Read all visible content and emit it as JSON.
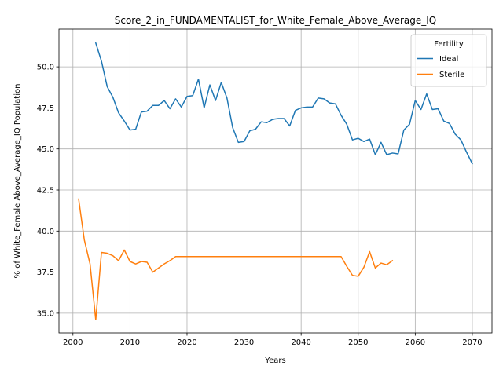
{
  "chart_data": {
    "type": "line",
    "title": "Score_2_in_FUNDAMENTALIST_for_White_Female_Above_Average_IQ",
    "xlabel": "Years",
    "ylabel": "% of White_Female Above_Average_IQ Population",
    "xlim": [
      1997.55,
      2073.45
    ],
    "ylim": [
      33.8,
      52.3
    ],
    "xticks": [
      2000,
      2010,
      2020,
      2030,
      2040,
      2050,
      2060,
      2070
    ],
    "yticks": [
      35.0,
      37.5,
      40.0,
      42.5,
      45.0,
      47.5,
      50.0
    ],
    "grid": true,
    "legend": {
      "title": "Fertility",
      "position": "top-right"
    },
    "series": [
      {
        "name": "Ideal",
        "color": "#1f77b4",
        "x": [
          2004,
          2005,
          2006,
          2007,
          2008,
          2009,
          2010,
          2011,
          2012,
          2013,
          2014,
          2015,
          2016,
          2017,
          2018,
          2019,
          2020,
          2021,
          2022,
          2023,
          2024,
          2025,
          2026,
          2027,
          2028,
          2029,
          2030,
          2031,
          2032,
          2033,
          2034,
          2035,
          2036,
          2037,
          2038,
          2039,
          2040,
          2041,
          2042,
          2043,
          2044,
          2045,
          2046,
          2047,
          2048,
          2049,
          2050,
          2051,
          2052,
          2053,
          2054,
          2055,
          2056,
          2057,
          2058,
          2059,
          2060,
          2061,
          2062,
          2063,
          2064,
          2065,
          2066,
          2067,
          2068,
          2069,
          2070
        ],
        "values": [
          51.45,
          50.35,
          48.8,
          48.15,
          47.2,
          46.7,
          46.15,
          46.2,
          47.25,
          47.3,
          47.65,
          47.65,
          47.95,
          47.45,
          48.05,
          47.55,
          48.2,
          48.25,
          49.25,
          47.5,
          48.9,
          47.95,
          49.05,
          48.1,
          46.3,
          45.4,
          45.45,
          46.1,
          46.2,
          46.65,
          46.6,
          46.8,
          46.85,
          46.85,
          46.4,
          47.35,
          47.5,
          47.55,
          47.55,
          48.1,
          48.05,
          47.8,
          47.75,
          47.05,
          46.5,
          45.55,
          45.65,
          45.45,
          45.6,
          44.65,
          45.4,
          44.65,
          44.75,
          44.7,
          46.15,
          46.5,
          47.95,
          47.4,
          48.35,
          47.4,
          47.45,
          46.7,
          46.55,
          45.9,
          45.55,
          44.8,
          44.1
        ]
      },
      {
        "name": "Sterile",
        "color": "#ff7f0e",
        "x": [
          2001,
          2002,
          2003,
          2004,
          2005,
          2006,
          2007,
          2008,
          2009,
          2010,
          2011,
          2012,
          2013,
          2014,
          2015,
          2016,
          2017,
          2018,
          2019,
          2020,
          2021,
          2022,
          2023,
          2024,
          2025,
          2026,
          2027,
          2028,
          2029,
          2030,
          2031,
          2032,
          2033,
          2034,
          2035,
          2036,
          2037,
          2038,
          2039,
          2040,
          2041,
          2042,
          2043,
          2044,
          2045,
          2046,
          2047,
          2048,
          2049,
          2050,
          2051,
          2052,
          2053,
          2054,
          2055,
          2056
        ],
        "values": [
          41.95,
          39.45,
          38.0,
          34.6,
          38.7,
          38.65,
          38.5,
          38.2,
          38.85,
          38.15,
          38.0,
          38.15,
          38.1,
          37.5,
          37.75,
          38.0,
          38.2,
          38.45,
          38.45,
          38.45,
          38.45,
          38.45,
          38.45,
          38.45,
          38.45,
          38.45,
          38.45,
          38.45,
          38.45,
          38.45,
          38.45,
          38.45,
          38.45,
          38.45,
          38.45,
          38.45,
          38.45,
          38.45,
          38.45,
          38.45,
          38.45,
          38.45,
          38.45,
          38.45,
          38.45,
          38.45,
          38.45,
          37.85,
          37.3,
          37.25,
          37.8,
          38.75,
          37.75,
          38.05,
          37.95,
          38.2
        ]
      }
    ]
  }
}
